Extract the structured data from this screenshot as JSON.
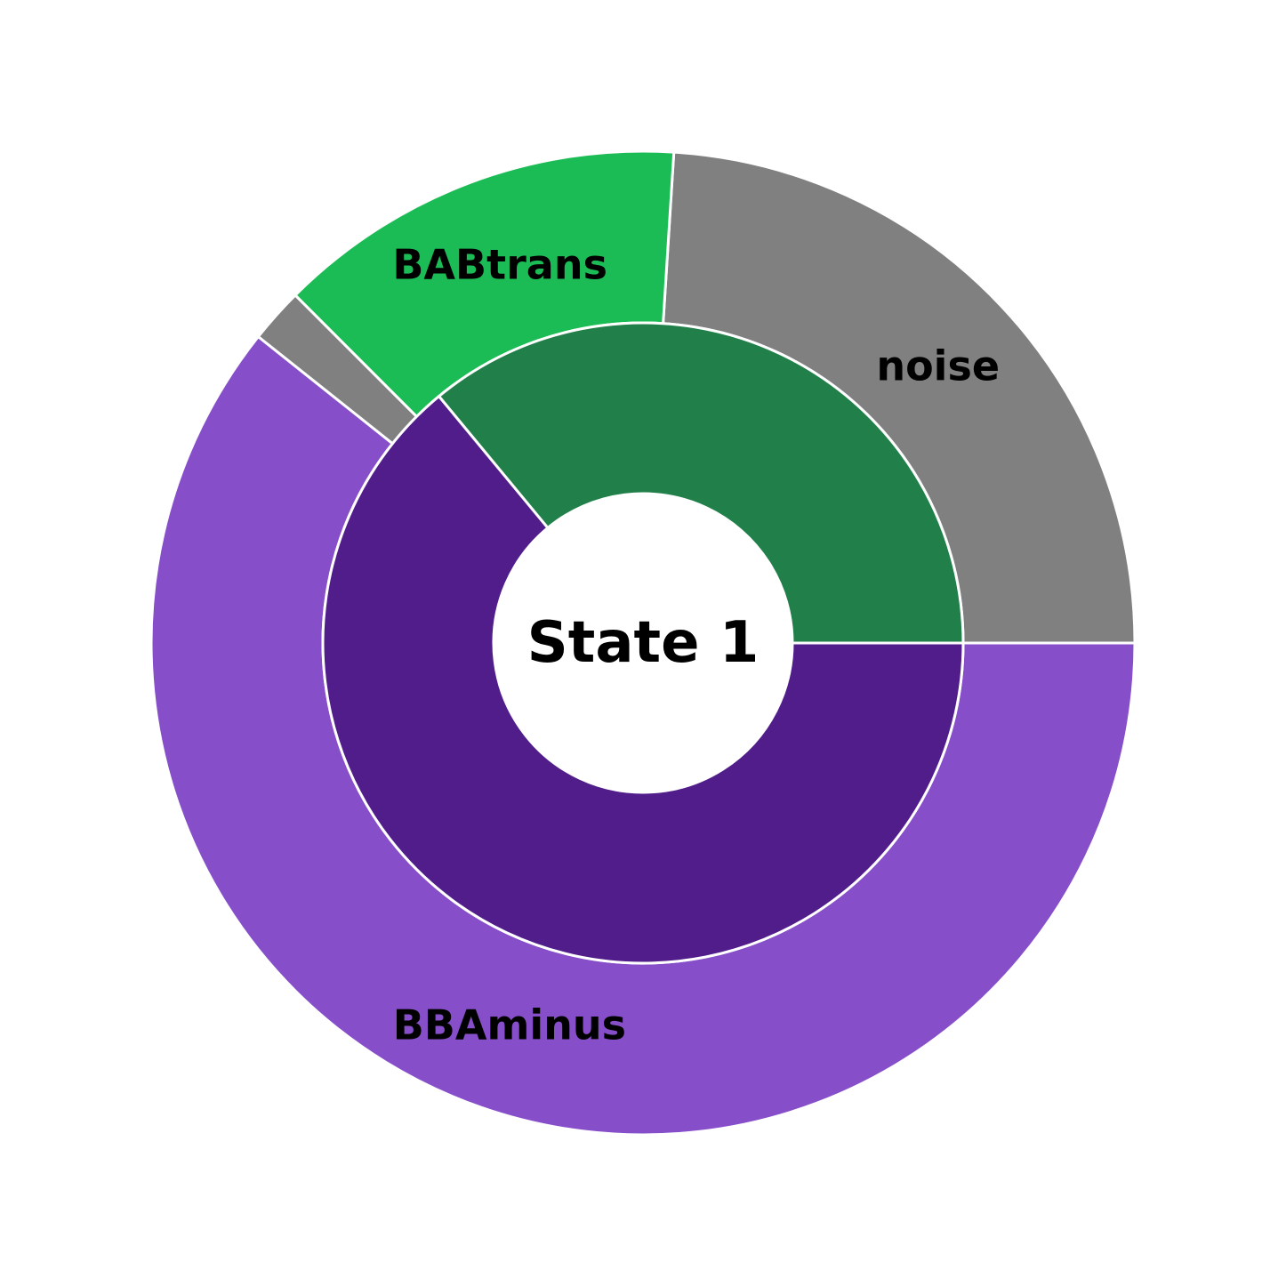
{
  "chart_data": {
    "type": "pie",
    "variant": "nested-donut",
    "center_label": "State 1",
    "start_angle_deg": 0,
    "direction": "counterclockwise",
    "inner_ring": [
      {
        "label": "",
        "value": 36.0,
        "color": "#21804A"
      },
      {
        "label": "",
        "value": 64.0,
        "color": "#501D8A"
      }
    ],
    "outer_ring": [
      {
        "label": "noise",
        "value": 24.0,
        "color": "#808080"
      },
      {
        "label": "BABtrans",
        "value": 13.5,
        "color": "#1BBC55"
      },
      {
        "label": "",
        "value": 1.8,
        "color": "#808080"
      },
      {
        "label": "BBAminus",
        "value": 60.7,
        "color": "#874ECA"
      }
    ],
    "separator_color": "#FFFFFF"
  }
}
